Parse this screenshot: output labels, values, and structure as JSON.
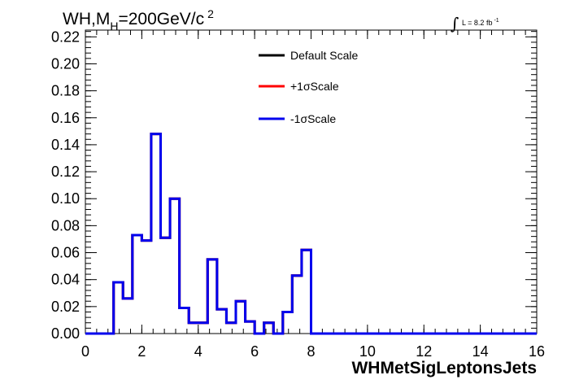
{
  "title": {
    "main": "WH,M",
    "subscript": "H",
    "rest": "=200GeV/c",
    "superscript": "2"
  },
  "luminosity": {
    "integral_symbol": "∫",
    "text": "L = 8.2 fb",
    "superscript": "-1"
  },
  "chart_data": {
    "type": "line",
    "title": "WH,MH=200GeV/c2",
    "xlabel": "WHMetSigLeptonsJets",
    "ylabel": "",
    "xlim": [
      0,
      16
    ],
    "ylim": [
      0,
      0.225
    ],
    "x_tick_labels": [
      "0",
      "2",
      "4",
      "6",
      "8",
      "10",
      "12",
      "14",
      "16"
    ],
    "y_tick_labels": [
      "0.00",
      "0.02",
      "0.04",
      "0.06",
      "0.08",
      "0.10",
      "0.12",
      "0.14",
      "0.16",
      "0.18",
      "0.20",
      "0.22"
    ],
    "bin_edges": [
      0,
      0.333,
      0.667,
      1.0,
      1.333,
      1.667,
      2.0,
      2.333,
      2.667,
      3.0,
      3.333,
      3.667,
      4.0,
      4.333,
      4.667,
      5.0,
      5.333,
      5.667,
      6.0,
      6.333,
      6.667,
      7.0,
      7.333,
      7.667,
      8.0,
      16.0
    ],
    "series": [
      {
        "name": "Default Scale",
        "color": "#000000",
        "values": [
          0,
          0,
          0,
          0.038,
          0.026,
          0.073,
          0.069,
          0.148,
          0.071,
          0.1,
          0.019,
          0.008,
          0.008,
          0.055,
          0.018,
          0.008,
          0.024,
          0.009,
          0.0,
          0.008,
          0.0,
          0.016,
          0.043,
          0.062,
          0,
          0
        ]
      },
      {
        "name": "+1σScale",
        "color": "#ff0000",
        "values": [
          0,
          0,
          0,
          0.038,
          0.026,
          0.073,
          0.069,
          0.148,
          0.071,
          0.1,
          0.019,
          0.008,
          0.008,
          0.055,
          0.018,
          0.008,
          0.024,
          0.009,
          0.0,
          0.008,
          0.0,
          0.016,
          0.043,
          0.062,
          0,
          0
        ]
      },
      {
        "name": "-1σScale",
        "color": "#0000ee",
        "values": [
          0,
          0,
          0,
          0.038,
          0.026,
          0.073,
          0.069,
          0.148,
          0.071,
          0.1,
          0.019,
          0.008,
          0.008,
          0.055,
          0.018,
          0.008,
          0.024,
          0.009,
          0.0,
          0.008,
          0.0,
          0.016,
          0.043,
          0.062,
          0,
          0
        ]
      }
    ],
    "legend_position": "top-center",
    "grid": false
  }
}
